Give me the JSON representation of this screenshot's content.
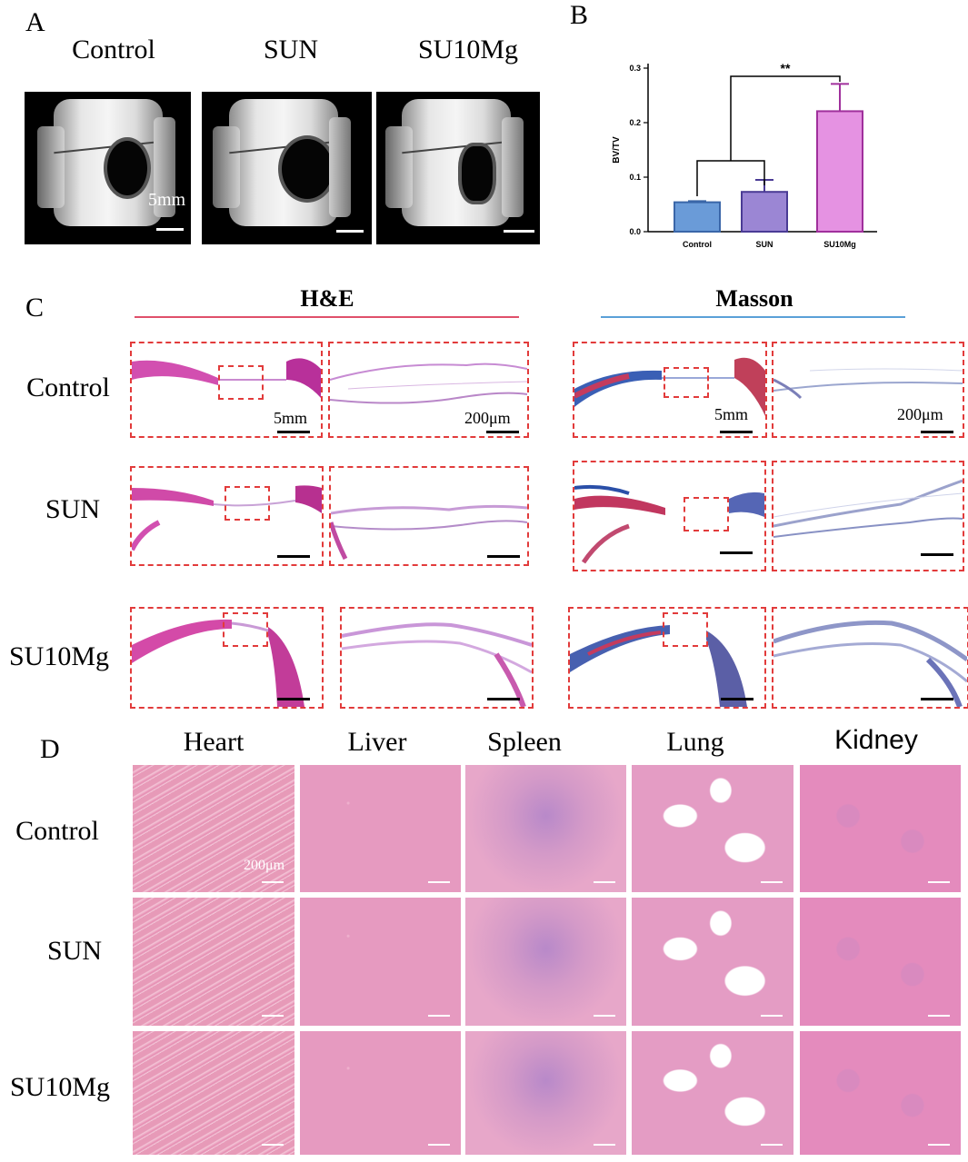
{
  "panels": {
    "a": "A",
    "b": "B",
    "c": "C",
    "d": "D"
  },
  "groups": [
    "Control",
    "SUN",
    "SU10Mg"
  ],
  "panel_a": {
    "scale_label": "5mm"
  },
  "panel_c": {
    "he_title": "H&E",
    "masson_title": "Masson",
    "scale_low": "5mm",
    "scale_high": "200μm"
  },
  "panel_d": {
    "organs": [
      "Heart",
      "Liver",
      "Spleen",
      "Lung",
      "Kidney"
    ],
    "scale_label": "200μm"
  },
  "chart_data": {
    "type": "bar",
    "categories": [
      "Control",
      "SUN",
      "SU10Mg"
    ],
    "values": [
      0.054,
      0.073,
      0.221
    ],
    "errors": [
      0.002,
      0.022,
      0.05
    ],
    "colors": [
      "#6a9bd8",
      "#9b86d4",
      "#e592e2"
    ],
    "edge_colors": [
      "#3a66a8",
      "#4a3b95",
      "#a0309c"
    ],
    "ylabel": "BV/TV",
    "ylim": [
      0,
      0.3
    ],
    "yticks": [
      "0.0",
      "0.1",
      "0.2",
      "0.3"
    ],
    "significance": {
      "label": "**",
      "from": [
        "Control",
        "SUN"
      ],
      "to": "SU10Mg"
    }
  }
}
